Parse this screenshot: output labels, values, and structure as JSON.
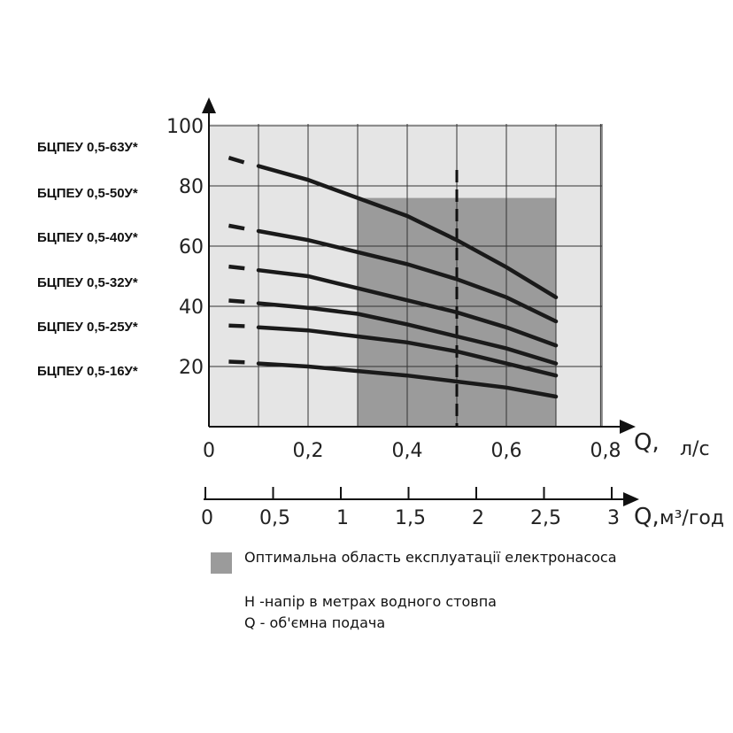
{
  "chart_data": {
    "type": "line",
    "x_axis_label": "Q,",
    "x_axis_unit": "л/с",
    "x_ticks": [
      "0",
      "0,2",
      "0,4",
      "0,6",
      "0,8"
    ],
    "secondary_x_axis_label": "Q,",
    "secondary_x_axis_unit": "м³/год",
    "secondary_x_ticks": [
      "0",
      "0,5",
      "1",
      "1,5",
      "2",
      "2,5",
      "3"
    ],
    "y_ticks": [
      "20",
      "40",
      "60",
      "80",
      "100"
    ],
    "xlim": [
      0,
      0.85
    ],
    "ylim": [
      0,
      100
    ],
    "optimal_region": {
      "x_from": 0.3,
      "x_to": 0.7
    },
    "reference_line_x": 0.5,
    "series": [
      {
        "name": "БЦПЕУ 0,5-63У*",
        "dashed_x": [
          0.04,
          0.1
        ],
        "x": [
          0.1,
          0.2,
          0.3,
          0.4,
          0.5,
          0.6,
          0.7
        ],
        "y": [
          86.6,
          82,
          76,
          70,
          62,
          53,
          43
        ]
      },
      {
        "name": "БЦПЕУ 0,5-50У*",
        "dashed_x": [
          0.04,
          0.1
        ],
        "x": [
          0.1,
          0.2,
          0.3,
          0.4,
          0.5,
          0.6,
          0.7
        ],
        "y": [
          65,
          62,
          58,
          54,
          49,
          43,
          35
        ]
      },
      {
        "name": "БЦПЕУ 0,5-40У*",
        "dashed_x": [
          0.04,
          0.1
        ],
        "x": [
          0.1,
          0.2,
          0.3,
          0.4,
          0.5,
          0.6,
          0.7
        ],
        "y": [
          52,
          50,
          46,
          42,
          38,
          33,
          27
        ]
      },
      {
        "name": "БЦПЕУ 0,5-32У*",
        "dashed_x": [
          0.04,
          0.1
        ],
        "x": [
          0.1,
          0.2,
          0.3,
          0.4,
          0.5,
          0.6,
          0.7
        ],
        "y": [
          41,
          39.5,
          37.5,
          34,
          30,
          26,
          21
        ]
      },
      {
        "name": "БЦПЕУ 0,5-25У*",
        "dashed_x": [
          0.04,
          0.1
        ],
        "x": [
          0.1,
          0.2,
          0.3,
          0.4,
          0.5,
          0.6,
          0.7
        ],
        "y": [
          33,
          32,
          30,
          28,
          25,
          21,
          17
        ]
      },
      {
        "name": "БЦПЕУ 0,5-16У*",
        "dashed_x": [
          0.04,
          0.1
        ],
        "x": [
          0.1,
          0.2,
          0.3,
          0.4,
          0.5,
          0.6,
          0.7
        ],
        "y": [
          21,
          20,
          18.5,
          17,
          15,
          13,
          10
        ]
      }
    ],
    "colors": {
      "plot_background": "#e5e5e5",
      "optimal_region": "#9b9b9b",
      "curves": "#1a1a1a",
      "grid": "#333333"
    }
  },
  "legend": {
    "optimal_label": "Оптимальна область експлуатації електронасоса",
    "note_h": "H -напір в метрах водного стовпа",
    "note_q": "Q - об'ємна подача"
  }
}
